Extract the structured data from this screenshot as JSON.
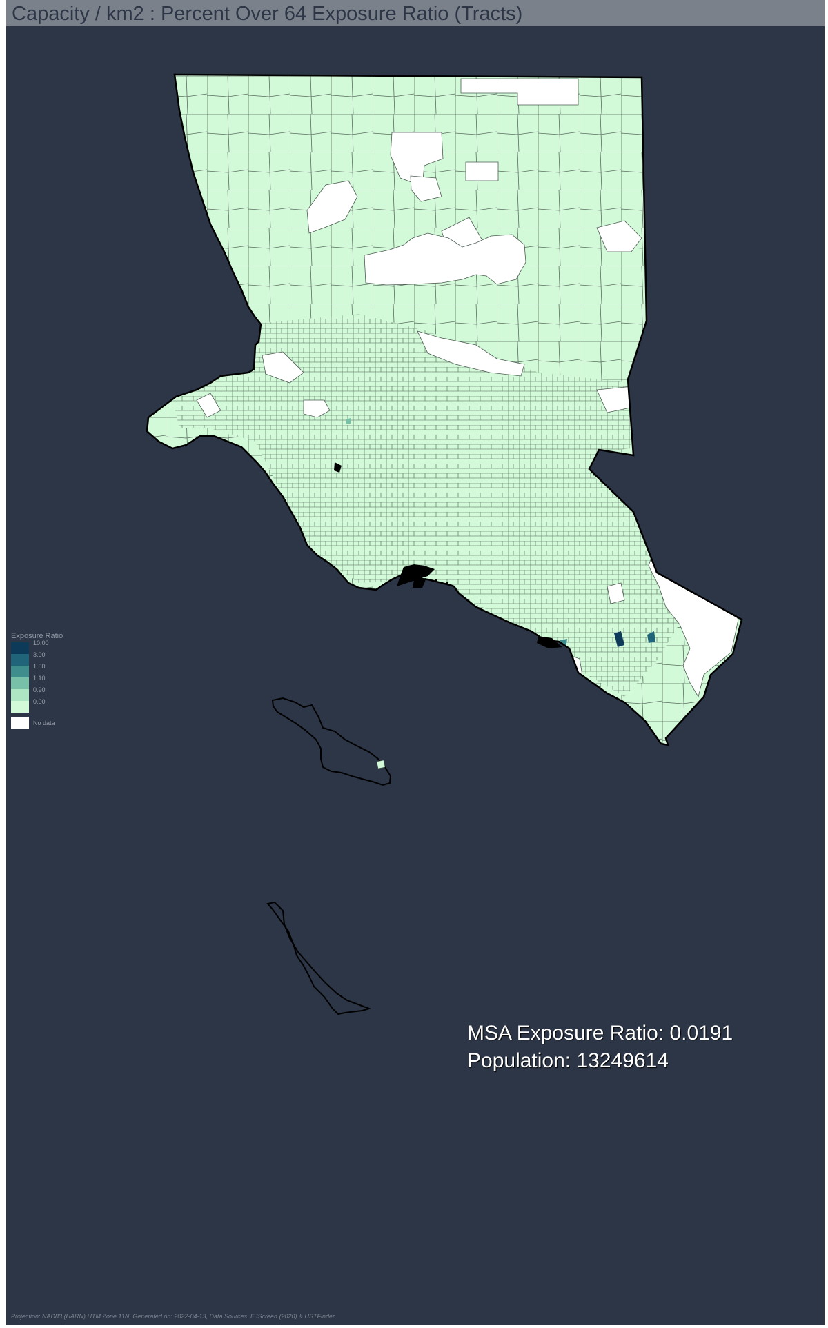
{
  "title": "Capacity / km2 : Percent Over 64 Exposure Ratio (Tracts)",
  "legend": {
    "title": "Exposure Ratio",
    "classes": [
      {
        "label": "10.00",
        "color": "#0e3a5a"
      },
      {
        "label": "3.00",
        "color": "#1f6478"
      },
      {
        "label": "1.50",
        "color": "#3f8d8c"
      },
      {
        "label": "1.10",
        "color": "#78c0a8"
      },
      {
        "label": "0.90",
        "color": "#aee6c4"
      },
      {
        "label": "0.00",
        "color": "#d2fad8"
      }
    ],
    "no_data_label": "No data",
    "no_data_color": "#ffffff"
  },
  "stats": {
    "exposure_ratio": "MSA Exposure Ratio: 0.0191",
    "population": "Population: 13249614"
  },
  "footer": "Projection: NAD83 (HARN) UTM Zone 11N, Generated on: 2022-04-13, Data Sources: EJScreen (2020) & USTFinder",
  "colors": {
    "background": "#2c3646",
    "title_bar": "#7b818a",
    "tract_fill": "#d2fad8",
    "tract_line": "#4a5a50",
    "no_data": "#ffffff",
    "outline": "#000000"
  }
}
